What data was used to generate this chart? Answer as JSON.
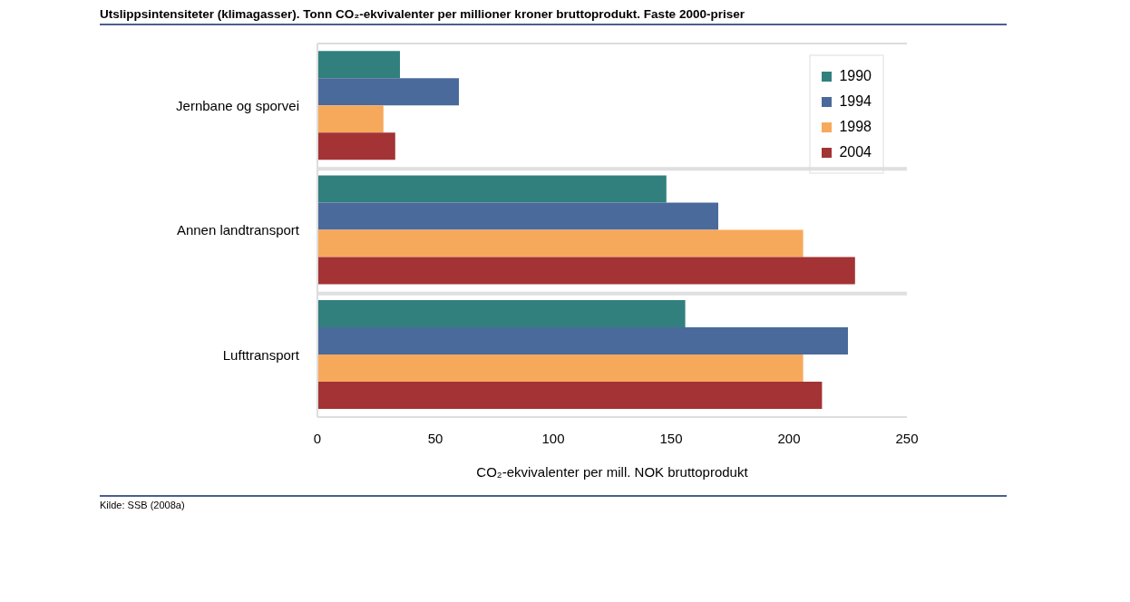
{
  "chart_data": {
    "type": "bar",
    "orientation": "horizontal",
    "title": "Utslippsintensiteter (klimagasser). Tonn CO₂-ekvivalenter per millioner kroner bruttoprodukt. Faste 2000-priser",
    "xlabel": "CO₂-ekvivalenter per mill. NOK bruttoprodukt",
    "annotations": [
      "Kilde: SSB (2008a)"
    ],
    "categories": [
      "Jernbane og sporvei",
      "Annen landtransport",
      "Lufttransport"
    ],
    "series": [
      {
        "name": "1990",
        "color": "#31807e",
        "values": [
          35,
          148,
          156
        ]
      },
      {
        "name": "1994",
        "color": "#4a6a9c",
        "values": [
          60,
          170,
          225
        ]
      },
      {
        "name": "1998",
        "color": "#f6a95b",
        "values": [
          28,
          206,
          206
        ]
      },
      {
        "name": "2004",
        "color": "#a33334",
        "values": [
          33,
          228,
          214
        ]
      }
    ],
    "xlim": [
      0,
      250
    ],
    "xticks": [
      0,
      50,
      100,
      150,
      200,
      250
    ],
    "grid": "y",
    "legend": "top right"
  }
}
